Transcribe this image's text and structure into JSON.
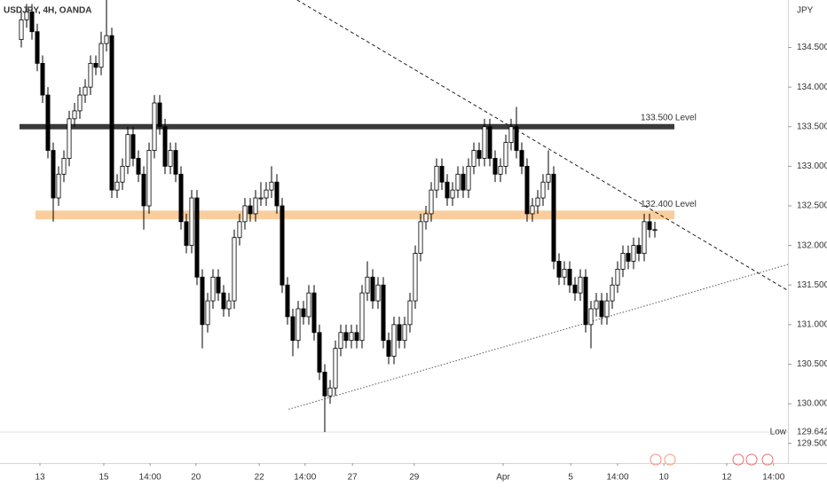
{
  "chart_data": {
    "type": "candlestick",
    "title": "USDJPY, 4H, OANDA",
    "y_axis_label": "JPY",
    "ylim": [
      129.25,
      135.1
    ],
    "xlim": [
      -4,
      144
    ],
    "yticks": [
      {
        "value": 134.5,
        "label": "134.500"
      },
      {
        "value": 134,
        "label": "134.000"
      },
      {
        "value": 133.5,
        "label": "133.500"
      },
      {
        "value": 133,
        "label": "133.000"
      },
      {
        "value": 132.5,
        "label": "132.500"
      },
      {
        "value": 132,
        "label": "132.000"
      },
      {
        "value": 131.5,
        "label": "131.500"
      },
      {
        "value": 131,
        "label": "131.000"
      },
      {
        "value": 130.5,
        "label": "130.500"
      },
      {
        "value": 130,
        "label": "130.000"
      },
      {
        "value": 129.5,
        "label": "129.500"
      }
    ],
    "xticks": [
      {
        "value": 3.5,
        "label": "13"
      },
      {
        "value": 15.5,
        "label": "15"
      },
      {
        "value": 24.2,
        "label": "14:00"
      },
      {
        "value": 32.8,
        "label": "20"
      },
      {
        "value": 44.7,
        "label": "22"
      },
      {
        "value": 53.3,
        "label": "14:00"
      },
      {
        "value": 62.2,
        "label": "27"
      },
      {
        "value": 73.8,
        "label": "29"
      },
      {
        "value": 90.5,
        "label": "Apr"
      },
      {
        "value": 103.2,
        "label": "5"
      },
      {
        "value": 112,
        "label": "14:00"
      },
      {
        "value": 120.7,
        "label": "10"
      },
      {
        "value": 132.5,
        "label": "12"
      },
      {
        "value": 141.3,
        "label": "14:00"
      }
    ],
    "up_color": "#ffffff",
    "down_color": "#000000",
    "open": [
      134.6,
      134.85,
      134.95,
      134.7,
      134.3,
      133.9,
      133.2,
      132.6,
      132.9,
      133.1,
      133.6,
      133.7,
      133.9,
      134.0,
      134.3,
      134.25,
      134.55,
      134.65,
      132.7,
      132.8,
      133.0,
      133.4,
      133.1,
      132.9,
      132.5,
      133.2,
      133.8,
      133.5,
      133.0,
      133.2,
      132.9,
      132.3,
      132.0,
      132.6,
      131.6,
      131.0,
      131.3,
      131.6,
      131.4,
      131.2,
      131.3,
      132.1,
      132.3,
      132.5,
      132.4,
      132.6,
      132.6,
      132.7,
      132.8,
      132.5,
      131.5,
      131.1,
      130.8,
      131.2,
      131.1,
      131.4,
      130.9,
      130.4,
      130.1,
      130.2,
      130.7,
      130.9,
      130.8,
      130.9,
      130.8,
      131.4,
      131.6,
      131.3,
      131.5,
      130.8,
      130.6,
      131.0,
      130.8,
      131.0,
      131.3,
      131.9,
      132.3,
      132.4,
      132.7,
      133.0,
      132.8,
      132.6,
      132.7,
      132.9,
      132.7,
      133.0,
      133.2,
      133.1,
      133.5,
      133.1,
      132.9,
      133.0,
      133.3,
      133.5,
      133.2,
      133.0,
      132.4,
      132.5,
      132.6,
      132.8,
      132.9,
      131.8,
      131.6,
      131.7,
      131.5,
      131.4,
      131.6,
      131.0,
      131.2,
      131.3,
      131.1,
      131.3,
      131.5,
      131.7,
      131.9,
      131.8,
      132.0,
      131.9,
      132.3,
      132.2
    ],
    "high": [
      134.95,
      135.05,
      135.05,
      134.8,
      134.4,
      134.0,
      133.3,
      133.0,
      133.2,
      133.7,
      133.8,
      134.0,
      134.1,
      134.4,
      134.4,
      134.7,
      135.1,
      134.75,
      132.9,
      133.1,
      133.5,
      133.5,
      133.2,
      133.0,
      133.3,
      133.9,
      133.9,
      133.6,
      133.3,
      133.3,
      133.0,
      132.4,
      132.7,
      132.7,
      131.7,
      131.4,
      131.7,
      131.7,
      131.5,
      131.4,
      132.2,
      132.4,
      132.6,
      132.6,
      132.7,
      132.8,
      132.8,
      133.0,
      132.9,
      132.6,
      131.6,
      131.2,
      131.3,
      131.3,
      131.5,
      131.5,
      131.0,
      130.5,
      130.3,
      130.8,
      131.0,
      131.0,
      131.0,
      131.0,
      131.5,
      131.8,
      131.7,
      131.6,
      131.6,
      130.9,
      131.1,
      131.1,
      131.1,
      131.4,
      132.0,
      132.4,
      132.5,
      132.8,
      133.1,
      133.1,
      132.9,
      132.8,
      133.0,
      133.0,
      133.1,
      133.3,
      133.3,
      133.6,
      133.6,
      133.2,
      133.1,
      133.4,
      133.6,
      133.75,
      133.3,
      133.1,
      132.6,
      132.7,
      132.9,
      133.2,
      133.0,
      131.9,
      131.8,
      131.8,
      131.6,
      131.7,
      131.7,
      131.3,
      131.4,
      131.4,
      131.4,
      131.6,
      131.8,
      132.0,
      132.0,
      132.1,
      132.1,
      132.4,
      132.4,
      132.3
    ],
    "low": [
      134.5,
      134.75,
      134.6,
      134.2,
      133.8,
      133.1,
      132.3,
      132.5,
      132.8,
      133.0,
      133.5,
      133.6,
      133.8,
      133.9,
      134.15,
      134.15,
      134.45,
      132.6,
      132.6,
      132.7,
      132.9,
      133.0,
      132.8,
      132.2,
      132.4,
      133.1,
      133.4,
      132.9,
      132.9,
      132.8,
      132.2,
      131.9,
      131.9,
      131.5,
      130.7,
      130.9,
      131.2,
      131.3,
      131.1,
      131.1,
      131.2,
      132.0,
      132.2,
      132.3,
      132.3,
      132.5,
      132.5,
      132.6,
      132.4,
      131.4,
      131.0,
      130.6,
      130.7,
      131.0,
      131.0,
      130.8,
      130.3,
      129.642,
      130.0,
      130.1,
      130.6,
      130.7,
      130.7,
      130.7,
      130.7,
      131.3,
      131.2,
      131.2,
      130.7,
      130.5,
      130.5,
      130.7,
      130.7,
      130.9,
      131.2,
      131.8,
      132.2,
      132.3,
      132.6,
      132.7,
      132.5,
      132.5,
      132.6,
      132.6,
      132.6,
      132.9,
      133.0,
      133.0,
      133.0,
      132.8,
      132.8,
      132.9,
      133.2,
      133.1,
      132.9,
      132.3,
      132.3,
      132.4,
      132.5,
      132.7,
      131.7,
      131.5,
      131.5,
      131.4,
      131.3,
      131.3,
      130.9,
      130.7,
      131.1,
      131.0,
      131.0,
      131.2,
      131.4,
      131.6,
      131.7,
      131.7,
      131.8,
      131.8,
      132.1,
      132.1
    ],
    "close": [
      134.85,
      134.95,
      134.7,
      134.3,
      133.9,
      133.2,
      132.6,
      132.9,
      133.1,
      133.6,
      133.7,
      133.9,
      134.0,
      134.3,
      134.25,
      134.55,
      134.65,
      132.7,
      132.8,
      133.0,
      133.4,
      133.1,
      132.9,
      132.5,
      133.2,
      133.8,
      133.5,
      133.0,
      133.2,
      132.9,
      132.3,
      132.0,
      132.6,
      131.6,
      131.0,
      131.3,
      131.6,
      131.4,
      131.2,
      131.3,
      132.1,
      132.3,
      132.5,
      132.4,
      132.6,
      132.6,
      132.7,
      132.8,
      132.5,
      131.5,
      131.1,
      130.8,
      131.2,
      131.1,
      131.4,
      130.9,
      130.4,
      130.1,
      130.2,
      130.7,
      130.9,
      130.8,
      130.9,
      130.8,
      131.4,
      131.6,
      131.3,
      131.5,
      130.8,
      130.6,
      131.0,
      130.8,
      131.0,
      131.3,
      131.9,
      132.3,
      132.4,
      132.7,
      133.0,
      132.8,
      132.6,
      132.7,
      132.9,
      132.7,
      133.0,
      133.2,
      133.1,
      133.5,
      133.1,
      132.9,
      133.0,
      133.3,
      133.5,
      133.2,
      133.0,
      132.4,
      132.5,
      132.6,
      132.8,
      132.9,
      131.8,
      131.6,
      131.7,
      131.5,
      131.4,
      131.6,
      131.0,
      131.2,
      131.3,
      131.1,
      131.3,
      131.5,
      131.7,
      131.9,
      131.8,
      132.0,
      131.9,
      132.3,
      132.2,
      132.2
    ],
    "levels": [
      {
        "label": "133.500 Level",
        "value": 133.5,
        "color": "#3a3a3a"
      },
      {
        "label": "132.400 Level",
        "low": 132.33,
        "high": 132.44,
        "color": "#f8c48c"
      }
    ],
    "trendlines": [
      {
        "style": "dashed",
        "x": [
          51.8,
          144
        ],
        "y": [
          135.1,
          131.43
        ],
        "color": "#222222"
      },
      {
        "style": "dotted",
        "x": [
          50.2,
          144
        ],
        "y": [
          129.93,
          131.76
        ],
        "color": "#555555"
      }
    ],
    "low_marker": {
      "label": "Low",
      "value": 129.642
    }
  }
}
